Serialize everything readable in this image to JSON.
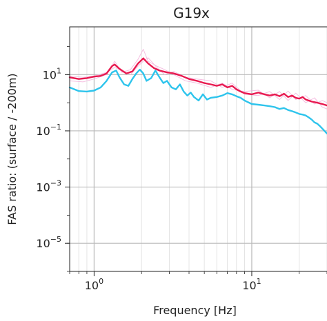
{
  "chart_data": {
    "type": "line",
    "title": "G19x",
    "xlabel": "Frequency [Hz]",
    "ylabel": "FAS ratio: (surface / -200m)",
    "x_scale": "log",
    "y_scale": "log",
    "xlim": [
      0.7,
      30
    ],
    "ylim": [
      1e-06,
      500
    ],
    "x_ticks": [
      {
        "value": 1,
        "base": "10",
        "exp": "0"
      },
      {
        "value": 10,
        "base": "10",
        "exp": "1"
      }
    ],
    "y_ticks": [
      {
        "value": 10,
        "base": "10",
        "exp": "1"
      },
      {
        "value": 0.1,
        "base": "10",
        "exp": "−1"
      },
      {
        "value": 0.001,
        "base": "10",
        "exp": "−3"
      },
      {
        "value": 1e-05,
        "base": "10",
        "exp": "−5"
      }
    ],
    "grid": true,
    "series": [
      {
        "color": "#e8194f",
        "points": [
          [
            0.7,
            8
          ],
          [
            0.8,
            7
          ],
          [
            0.9,
            7.5
          ],
          [
            1.0,
            8.5
          ],
          [
            1.1,
            9
          ],
          [
            1.2,
            11
          ],
          [
            1.3,
            20
          ],
          [
            1.35,
            23
          ],
          [
            1.45,
            16
          ],
          [
            1.6,
            11
          ],
          [
            1.75,
            13
          ],
          [
            1.9,
            25
          ],
          [
            2.05,
            38
          ],
          [
            2.2,
            25
          ],
          [
            2.4,
            17
          ],
          [
            2.6,
            14
          ],
          [
            2.9,
            12
          ],
          [
            3.2,
            11
          ],
          [
            3.6,
            9
          ],
          [
            4.0,
            7
          ],
          [
            4.5,
            6
          ],
          [
            5.0,
            5
          ],
          [
            5.5,
            4.5
          ],
          [
            6.0,
            4
          ],
          [
            6.5,
            4.5
          ],
          [
            7.0,
            3.5
          ],
          [
            7.5,
            4
          ],
          [
            8.0,
            3
          ],
          [
            8.5,
            2.5
          ],
          [
            9.0,
            2.2
          ],
          [
            10,
            2
          ],
          [
            11,
            2.3
          ],
          [
            12,
            2
          ],
          [
            13,
            1.8
          ],
          [
            14,
            2
          ],
          [
            15,
            1.7
          ],
          [
            16,
            2.1
          ],
          [
            17,
            1.6
          ],
          [
            18,
            1.8
          ],
          [
            19,
            1.5
          ],
          [
            20,
            1.4
          ],
          [
            21,
            1.6
          ],
          [
            22,
            1.3
          ],
          [
            24,
            1.1
          ],
          [
            26,
            1.0
          ],
          [
            28,
            0.9
          ],
          [
            30,
            0.8
          ]
        ]
      },
      {
        "color": "#2ec4ec",
        "points": [
          [
            0.7,
            3.5
          ],
          [
            0.8,
            2.6
          ],
          [
            0.9,
            2.5
          ],
          [
            1.0,
            2.7
          ],
          [
            1.1,
            3.5
          ],
          [
            1.2,
            6
          ],
          [
            1.3,
            12
          ],
          [
            1.38,
            14
          ],
          [
            1.45,
            8
          ],
          [
            1.55,
            4.5
          ],
          [
            1.65,
            4
          ],
          [
            1.75,
            7
          ],
          [
            1.85,
            11
          ],
          [
            1.95,
            15
          ],
          [
            2.05,
            11
          ],
          [
            2.15,
            6
          ],
          [
            2.3,
            7.5
          ],
          [
            2.45,
            14
          ],
          [
            2.6,
            8
          ],
          [
            2.75,
            5
          ],
          [
            2.9,
            6
          ],
          [
            3.1,
            3.5
          ],
          [
            3.3,
            3
          ],
          [
            3.5,
            4.5
          ],
          [
            3.7,
            2.5
          ],
          [
            3.9,
            1.8
          ],
          [
            4.1,
            2.3
          ],
          [
            4.3,
            1.6
          ],
          [
            4.6,
            1.2
          ],
          [
            4.9,
            2
          ],
          [
            5.2,
            1.3
          ],
          [
            5.5,
            1.5
          ],
          [
            6.0,
            1.6
          ],
          [
            6.5,
            1.8
          ],
          [
            7.0,
            2.2
          ],
          [
            7.5,
            2.0
          ],
          [
            8.0,
            1.7
          ],
          [
            8.5,
            1.5
          ],
          [
            9.0,
            1.2
          ],
          [
            10,
            0.9
          ],
          [
            11,
            0.85
          ],
          [
            12,
            0.8
          ],
          [
            13,
            0.75
          ],
          [
            14,
            0.7
          ],
          [
            15,
            0.6
          ],
          [
            16,
            0.65
          ],
          [
            17,
            0.55
          ],
          [
            18,
            0.5
          ],
          [
            19,
            0.45
          ],
          [
            20,
            0.4
          ],
          [
            21,
            0.38
          ],
          [
            22,
            0.35
          ],
          [
            23,
            0.3
          ],
          [
            24,
            0.25
          ],
          [
            25,
            0.2
          ],
          [
            26,
            0.18
          ],
          [
            27,
            0.15
          ],
          [
            28,
            0.12
          ],
          [
            30,
            0.08
          ]
        ]
      },
      {
        "color": "#f3b3dc",
        "points": [
          [
            0.7,
            6
          ],
          [
            0.85,
            5.5
          ],
          [
            1.0,
            7
          ],
          [
            1.2,
            10
          ],
          [
            1.35,
            30
          ],
          [
            1.5,
            12
          ],
          [
            1.7,
            15
          ],
          [
            1.9,
            35
          ],
          [
            2.05,
            80
          ],
          [
            2.2,
            30
          ],
          [
            2.5,
            20
          ],
          [
            2.8,
            15
          ],
          [
            3.2,
            10
          ],
          [
            3.8,
            6
          ],
          [
            4.5,
            5
          ],
          [
            5.5,
            3.5
          ],
          [
            6.5,
            5
          ],
          [
            7.5,
            3
          ],
          [
            9,
            2.5
          ],
          [
            11,
            2.8
          ],
          [
            13,
            1.5
          ],
          [
            15,
            2.5
          ],
          [
            17,
            1.2
          ],
          [
            19,
            2.2
          ],
          [
            22,
            1.0
          ],
          [
            25,
            1.5
          ],
          [
            28,
            0.7
          ],
          [
            30,
            0.6
          ]
        ]
      },
      {
        "color": "#f3b3dc",
        "points": [
          [
            0.7,
            9
          ],
          [
            0.85,
            8
          ],
          [
            1.0,
            9
          ],
          [
            1.2,
            12
          ],
          [
            1.35,
            18
          ],
          [
            1.5,
            14
          ],
          [
            1.7,
            10
          ],
          [
            1.9,
            20
          ],
          [
            2.05,
            30
          ],
          [
            2.2,
            40
          ],
          [
            2.5,
            18
          ],
          [
            2.8,
            10
          ],
          [
            3.2,
            13
          ],
          [
            3.8,
            8
          ],
          [
            4.5,
            7
          ],
          [
            5.5,
            6
          ],
          [
            6.5,
            3.5
          ],
          [
            7.5,
            5
          ],
          [
            9,
            2
          ],
          [
            11,
            1.8
          ],
          [
            13,
            2.5
          ],
          [
            15,
            1.3
          ],
          [
            17,
            2.6
          ],
          [
            19,
            1.3
          ],
          [
            22,
            1.8
          ],
          [
            25,
            0.9
          ],
          [
            28,
            1.2
          ],
          [
            30,
            1.0
          ]
        ]
      }
    ]
  }
}
